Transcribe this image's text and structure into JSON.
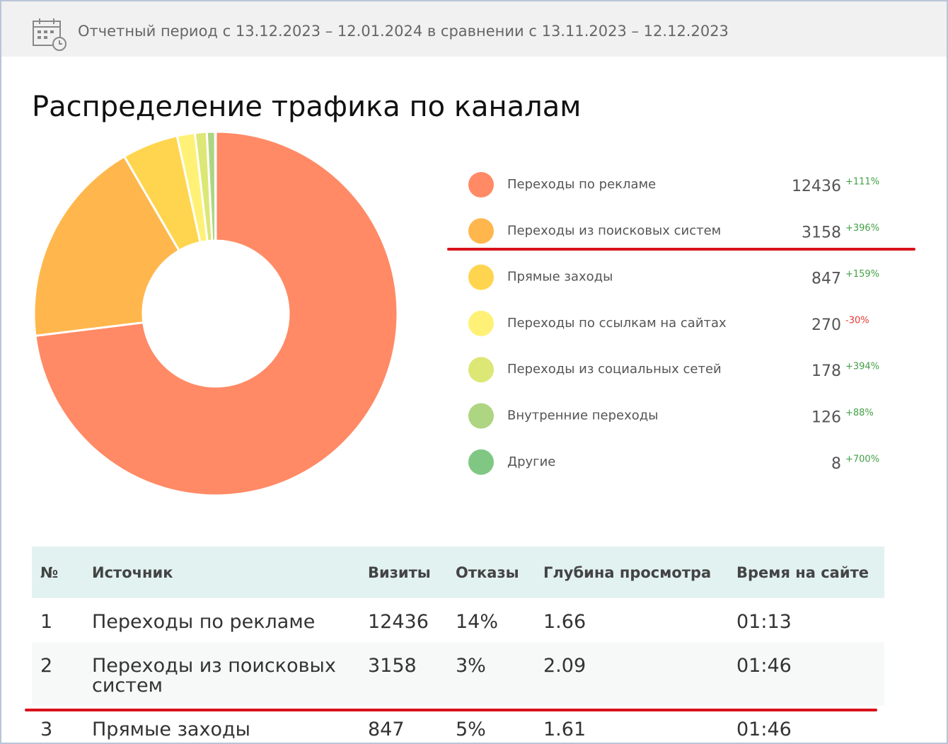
{
  "header": {
    "period": "Отчетный период с 13.12.2023 – 12.01.2024 в сравнении с 13.11.2023 – 12.12.2023"
  },
  "chart_data": {
    "type": "donut",
    "title": "Распределение трафика по каналам",
    "categories": [
      "Переходы по рекламе",
      "Переходы из поисковых систем",
      "Прямые заходы",
      "Переходы по ссылкам на сайтах",
      "Переходы из социальных сетей",
      "Внутренние переходы",
      "Другие"
    ],
    "values": [
      12436,
      3158,
      847,
      270,
      178,
      126,
      8
    ],
    "changes": [
      "+111%",
      "+396%",
      "+159%",
      "-30%",
      "+394%",
      "+88%",
      "+700%"
    ],
    "colors": [
      "#ff8a65",
      "#ffb74d",
      "#ffd54f",
      "#fff176",
      "#dce775",
      "#aed581",
      "#81c784"
    ]
  },
  "table": {
    "columns": [
      "№",
      "Источник",
      "Визиты",
      "Отказы",
      "Глубина просмотра",
      "Время на сайте"
    ],
    "rows": [
      [
        "1",
        "Переходы по рекламе",
        "12436",
        "14%",
        "1.66",
        "01:13"
      ],
      [
        "2",
        "Переходы из поисковых систем",
        "3158",
        "3%",
        "2.09",
        "01:46"
      ],
      [
        "3",
        "Прямые заходы",
        "847",
        "5%",
        "1.61",
        "01:46"
      ]
    ]
  }
}
